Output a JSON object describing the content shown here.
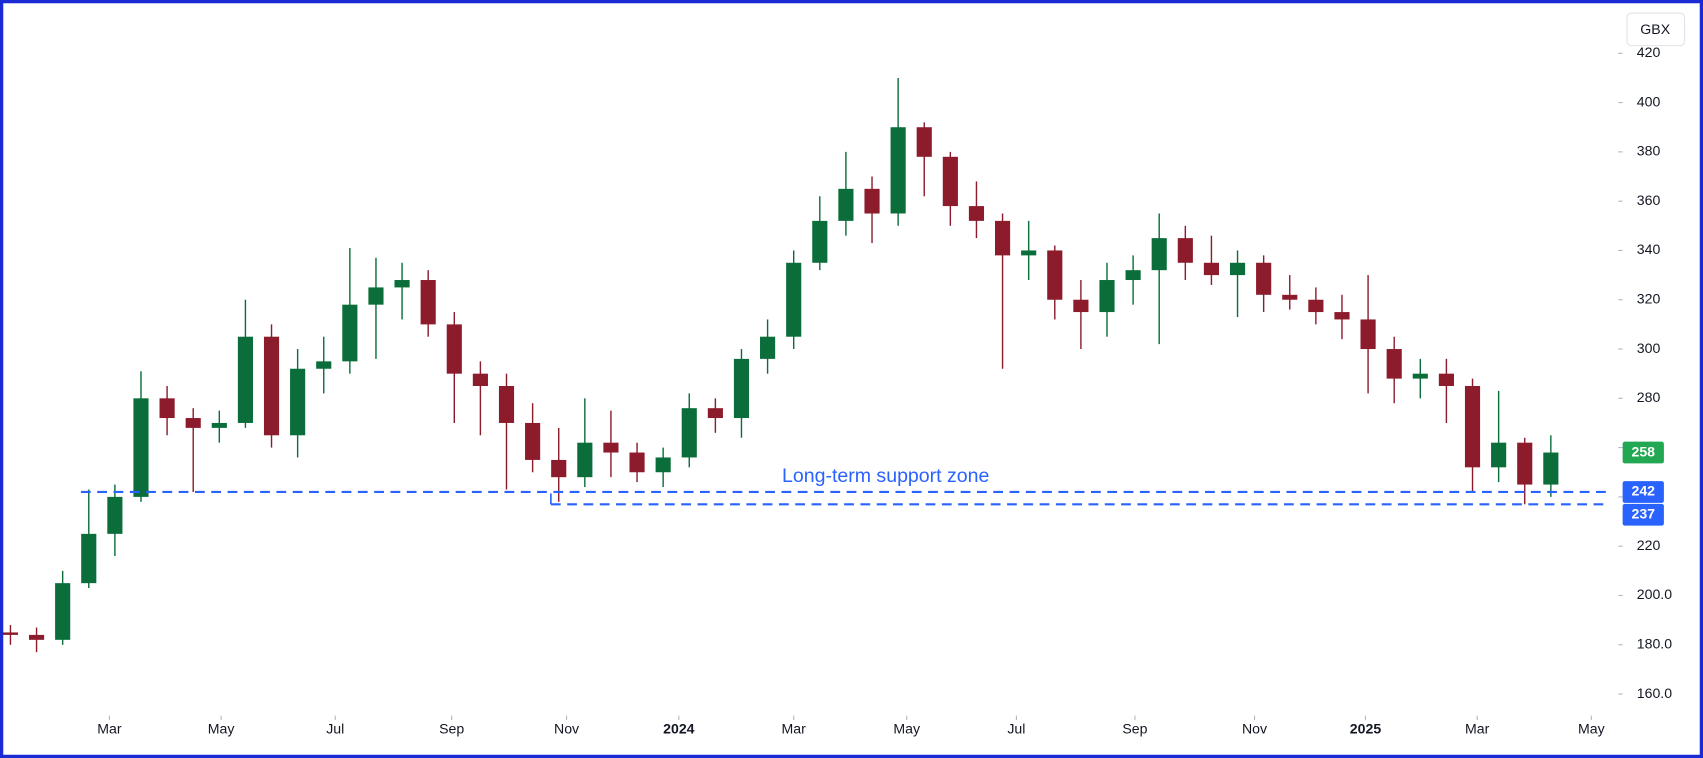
{
  "chart_data": {
    "type": "candlestick",
    "currency": "GBX",
    "open": [
      185,
      184,
      182,
      205,
      225,
      240,
      280,
      272,
      268,
      270,
      305,
      265,
      292,
      295,
      318,
      325,
      328,
      310,
      290,
      285,
      270,
      255,
      248,
      262,
      258,
      250,
      256,
      276,
      272,
      296,
      305,
      335,
      352,
      365,
      355,
      390,
      378,
      358,
      352,
      338,
      340,
      320,
      315,
      328,
      332,
      345,
      335,
      330,
      335,
      322,
      320,
      315,
      312,
      300,
      288,
      290,
      285,
      252,
      262,
      245
    ],
    "high": [
      188,
      187,
      210,
      243,
      245,
      291,
      285,
      276,
      275,
      320,
      310,
      300,
      305,
      341,
      337,
      335,
      332,
      315,
      295,
      290,
      278,
      268,
      280,
      275,
      262,
      260,
      282,
      280,
      300,
      312,
      340,
      362,
      380,
      370,
      410,
      392,
      380,
      368,
      355,
      352,
      342,
      328,
      335,
      338,
      355,
      350,
      346,
      340,
      338,
      330,
      325,
      322,
      330,
      305,
      296,
      296,
      288,
      283,
      264,
      265
    ],
    "low": [
      180,
      177,
      180,
      203,
      216,
      238,
      265,
      242,
      262,
      268,
      260,
      256,
      282,
      290,
      296,
      312,
      305,
      270,
      265,
      243,
      250,
      238,
      244,
      248,
      246,
      244,
      252,
      266,
      264,
      290,
      300,
      332,
      346,
      343,
      350,
      362,
      350,
      345,
      292,
      328,
      312,
      300,
      305,
      318,
      302,
      328,
      326,
      313,
      315,
      316,
      310,
      304,
      282,
      278,
      280,
      270,
      242,
      246,
      237,
      240
    ],
    "close": [
      184,
      182,
      205,
      225,
      240,
      280,
      272,
      268,
      270,
      305,
      265,
      292,
      295,
      318,
      325,
      328,
      310,
      290,
      285,
      270,
      255,
      248,
      262,
      258,
      250,
      256,
      276,
      272,
      296,
      305,
      335,
      352,
      365,
      355,
      390,
      378,
      358,
      352,
      338,
      340,
      320,
      315,
      328,
      332,
      345,
      335,
      330,
      335,
      322,
      320,
      315,
      312,
      300,
      288,
      290,
      285,
      252,
      262,
      245,
      258
    ],
    "up_color": "#0b6e3a",
    "down_color": "#8c1c2c",
    "ylim": [
      153,
      424
    ],
    "yticks": [
      {
        "value": 160,
        "label": "160.0"
      },
      {
        "value": 180,
        "label": "180.0"
      },
      {
        "value": 200,
        "label": "200.0"
      },
      220,
      240,
      260,
      280,
      300,
      320,
      340,
      360,
      380,
      400,
      420
    ],
    "xlim": [
      -0.4,
      61.5
    ],
    "xticks": [
      {
        "value": 3.79,
        "label": "Mar"
      },
      {
        "value": 8.07,
        "label": "May"
      },
      {
        "value": 12.44,
        "label": "Jul"
      },
      {
        "value": 16.9,
        "label": "Sep"
      },
      {
        "value": 21.3,
        "label": "Nov"
      },
      {
        "value": 25.6,
        "label": "2024"
      },
      {
        "value": 30.0,
        "label": "Mar"
      },
      {
        "value": 34.33,
        "label": "May"
      },
      {
        "value": 38.53,
        "label": "Jul"
      },
      {
        "value": 43.07,
        "label": "Sep"
      },
      {
        "value": 47.65,
        "label": "Nov"
      },
      {
        "value": 51.9,
        "label": "2025"
      },
      {
        "value": 56.18,
        "label": "Mar"
      },
      {
        "value": 60.55,
        "label": "May"
      }
    ],
    "last_price": 258,
    "last_price_color": "#22a852",
    "support_lines": [
      {
        "value": 242,
        "start": 2.7
      },
      {
        "value": 237,
        "start": 20.7
      }
    ],
    "support_color": "#2962ff",
    "annotation": "Long-term support zone"
  }
}
